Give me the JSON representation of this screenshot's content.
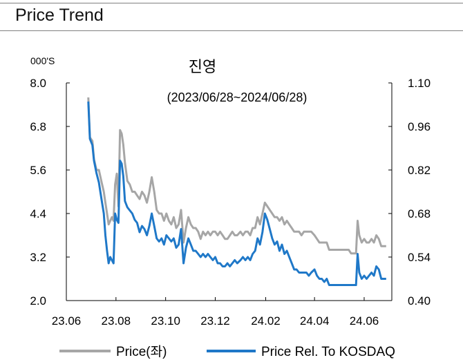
{
  "header": {
    "title": "Price Trend"
  },
  "chart_data": {
    "type": "line",
    "title": "진영",
    "subtitle": "(2023/06/28~2024/06/28)",
    "y_unit_label": "000'S",
    "x_tick_labels": [
      "23.06",
      "23.08",
      "23.10",
      "23.12",
      "24.02",
      "24.04",
      "24.06"
    ],
    "xlim": [
      "2023-06-01",
      "2024-07-05"
    ],
    "ylim_left": [
      2.0,
      8.0
    ],
    "ylim_right": [
      0.4,
      1.1
    ],
    "left_ticks": [
      "8.0",
      "6.8",
      "5.6",
      "4.4",
      "3.2",
      "2.0"
    ],
    "right_ticks": [
      "1.10",
      "0.96",
      "0.82",
      "0.68",
      "0.54",
      "0.40"
    ],
    "grid": false,
    "legend": "bottom",
    "series": [
      {
        "name": "Price(좌)",
        "axis": "left",
        "color": "#a6a6a6",
        "points": [
          [
            "2023-06-28",
            7.6
          ],
          [
            "2023-06-30",
            6.5
          ],
          [
            "2023-07-03",
            6.4
          ],
          [
            "2023-07-05",
            5.9
          ],
          [
            "2023-07-08",
            5.6
          ],
          [
            "2023-07-11",
            5.6
          ],
          [
            "2023-07-14",
            5.3
          ],
          [
            "2023-07-17",
            5.0
          ],
          [
            "2023-07-19",
            4.7
          ],
          [
            "2023-07-21",
            4.4
          ],
          [
            "2023-07-23",
            4.1
          ],
          [
            "2023-07-25",
            4.2
          ],
          [
            "2023-07-27",
            4.3
          ],
          [
            "2023-07-29",
            4.2
          ],
          [
            "2023-07-31",
            5.2
          ],
          [
            "2023-08-02",
            5.5
          ],
          [
            "2023-08-04",
            4.6
          ],
          [
            "2023-08-06",
            6.7
          ],
          [
            "2023-08-08",
            6.6
          ],
          [
            "2023-08-10",
            6.3
          ],
          [
            "2023-08-12",
            5.8
          ],
          [
            "2023-08-15",
            5.3
          ],
          [
            "2023-08-18",
            5.2
          ],
          [
            "2023-08-21",
            5.0
          ],
          [
            "2023-08-24",
            5.0
          ],
          [
            "2023-08-27",
            4.9
          ],
          [
            "2023-08-30",
            4.8
          ],
          [
            "2023-09-02",
            5.0
          ],
          [
            "2023-09-05",
            4.9
          ],
          [
            "2023-09-08",
            4.7
          ],
          [
            "2023-09-11",
            5.0
          ],
          [
            "2023-09-14",
            5.4
          ],
          [
            "2023-09-17",
            5.0
          ],
          [
            "2023-09-20",
            4.5
          ],
          [
            "2023-09-23",
            4.4
          ],
          [
            "2023-09-26",
            4.4
          ],
          [
            "2023-09-29",
            4.2
          ],
          [
            "2023-10-02",
            4.4
          ],
          [
            "2023-10-05",
            4.2
          ],
          [
            "2023-10-08",
            4.1
          ],
          [
            "2023-10-11",
            4.3
          ],
          [
            "2023-10-14",
            4.0
          ],
          [
            "2023-10-17",
            4.1
          ],
          [
            "2023-10-20",
            4.5
          ],
          [
            "2023-10-23",
            3.6
          ],
          [
            "2023-10-26",
            4.0
          ],
          [
            "2023-10-29",
            4.3
          ],
          [
            "2023-11-01",
            4.1
          ],
          [
            "2023-11-04",
            4.0
          ],
          [
            "2023-11-07",
            4.0
          ],
          [
            "2023-11-10",
            3.9
          ],
          [
            "2023-11-13",
            3.7
          ],
          [
            "2023-11-16",
            3.9
          ],
          [
            "2023-11-19",
            3.8
          ],
          [
            "2023-11-22",
            3.9
          ],
          [
            "2023-11-25",
            3.8
          ],
          [
            "2023-11-28",
            3.9
          ],
          [
            "2023-12-01",
            3.9
          ],
          [
            "2023-12-04",
            3.8
          ],
          [
            "2023-12-07",
            3.9
          ],
          [
            "2023-12-10",
            3.8
          ],
          [
            "2023-12-13",
            3.7
          ],
          [
            "2023-12-16",
            3.7
          ],
          [
            "2023-12-19",
            3.8
          ],
          [
            "2023-12-22",
            3.9
          ],
          [
            "2023-12-25",
            3.8
          ],
          [
            "2023-12-28",
            3.8
          ],
          [
            "2024-01-01",
            3.9
          ],
          [
            "2024-01-04",
            3.8
          ],
          [
            "2024-01-07",
            3.9
          ],
          [
            "2024-01-10",
            3.9
          ],
          [
            "2024-01-13",
            3.8
          ],
          [
            "2024-01-16",
            4.0
          ],
          [
            "2024-01-19",
            4.0
          ],
          [
            "2024-01-22",
            4.3
          ],
          [
            "2024-01-25",
            4.1
          ],
          [
            "2024-01-28",
            4.4
          ],
          [
            "2024-01-31",
            4.7
          ],
          [
            "2024-02-03",
            4.6
          ],
          [
            "2024-02-06",
            4.5
          ],
          [
            "2024-02-09",
            4.4
          ],
          [
            "2024-02-12",
            4.3
          ],
          [
            "2024-02-15",
            4.3
          ],
          [
            "2024-02-18",
            4.2
          ],
          [
            "2024-02-21",
            4.3
          ],
          [
            "2024-02-24",
            4.1
          ],
          [
            "2024-02-27",
            4.2
          ],
          [
            "2024-03-01",
            4.1
          ],
          [
            "2024-03-04",
            4.0
          ],
          [
            "2024-03-07",
            3.9
          ],
          [
            "2024-03-10",
            3.9
          ],
          [
            "2024-03-13",
            3.9
          ],
          [
            "2024-03-16",
            3.8
          ],
          [
            "2024-03-19",
            3.9
          ],
          [
            "2024-03-22",
            3.9
          ],
          [
            "2024-03-25",
            3.9
          ],
          [
            "2024-03-28",
            3.9
          ],
          [
            "2024-04-01",
            3.8
          ],
          [
            "2024-04-04",
            3.7
          ],
          [
            "2024-04-07",
            3.6
          ],
          [
            "2024-04-10",
            3.6
          ],
          [
            "2024-04-13",
            3.6
          ],
          [
            "2024-04-16",
            3.6
          ],
          [
            "2024-04-19",
            3.4
          ],
          [
            "2024-04-22",
            3.4
          ],
          [
            "2024-04-25",
            3.4
          ],
          [
            "2024-04-28",
            3.4
          ],
          [
            "2024-05-01",
            3.4
          ],
          [
            "2024-05-04",
            3.4
          ],
          [
            "2024-05-07",
            3.4
          ],
          [
            "2024-05-10",
            3.4
          ],
          [
            "2024-05-13",
            3.4
          ],
          [
            "2024-05-16",
            3.3
          ],
          [
            "2024-05-19",
            3.3
          ],
          [
            "2024-05-22",
            3.3
          ],
          [
            "2024-05-24",
            4.2
          ],
          [
            "2024-05-26",
            3.8
          ],
          [
            "2024-05-29",
            3.6
          ],
          [
            "2024-06-01",
            3.7
          ],
          [
            "2024-06-04",
            3.6
          ],
          [
            "2024-06-07",
            3.6
          ],
          [
            "2024-06-10",
            3.7
          ],
          [
            "2024-06-13",
            3.6
          ],
          [
            "2024-06-16",
            3.8
          ],
          [
            "2024-06-19",
            3.7
          ],
          [
            "2024-06-22",
            3.5
          ],
          [
            "2024-06-25",
            3.5
          ],
          [
            "2024-06-28",
            3.5
          ]
        ]
      },
      {
        "name": "Price Rel. To KOSDAQ",
        "axis": "right",
        "color": "#1f78c8",
        "points": [
          [
            "2023-06-28",
            1.04
          ],
          [
            "2023-06-30",
            0.92
          ],
          [
            "2023-07-03",
            0.9
          ],
          [
            "2023-07-05",
            0.85
          ],
          [
            "2023-07-08",
            0.81
          ],
          [
            "2023-07-11",
            0.78
          ],
          [
            "2023-07-14",
            0.73
          ],
          [
            "2023-07-17",
            0.68
          ],
          [
            "2023-07-19",
            0.61
          ],
          [
            "2023-07-21",
            0.56
          ],
          [
            "2023-07-23",
            0.52
          ],
          [
            "2023-07-25",
            0.54
          ],
          [
            "2023-07-27",
            0.53
          ],
          [
            "2023-07-29",
            0.52
          ],
          [
            "2023-07-31",
            0.68
          ],
          [
            "2023-08-02",
            0.66
          ],
          [
            "2023-08-04",
            0.65
          ],
          [
            "2023-08-06",
            0.85
          ],
          [
            "2023-08-08",
            0.84
          ],
          [
            "2023-08-10",
            0.8
          ],
          [
            "2023-08-12",
            0.72
          ],
          [
            "2023-08-15",
            0.7
          ],
          [
            "2023-08-18",
            0.69
          ],
          [
            "2023-08-21",
            0.68
          ],
          [
            "2023-08-24",
            0.66
          ],
          [
            "2023-08-27",
            0.65
          ],
          [
            "2023-08-30",
            0.62
          ],
          [
            "2023-09-02",
            0.64
          ],
          [
            "2023-09-05",
            0.63
          ],
          [
            "2023-09-08",
            0.61
          ],
          [
            "2023-09-11",
            0.64
          ],
          [
            "2023-09-14",
            0.68
          ],
          [
            "2023-09-17",
            0.64
          ],
          [
            "2023-09-20",
            0.6
          ],
          [
            "2023-09-23",
            0.59
          ],
          [
            "2023-09-26",
            0.6
          ],
          [
            "2023-09-29",
            0.58
          ],
          [
            "2023-10-02",
            0.61
          ],
          [
            "2023-10-05",
            0.6
          ],
          [
            "2023-10-08",
            0.59
          ],
          [
            "2023-10-11",
            0.6
          ],
          [
            "2023-10-14",
            0.57
          ],
          [
            "2023-10-17",
            0.58
          ],
          [
            "2023-10-20",
            0.63
          ],
          [
            "2023-10-23",
            0.52
          ],
          [
            "2023-10-26",
            0.57
          ],
          [
            "2023-10-29",
            0.6
          ],
          [
            "2023-11-01",
            0.58
          ],
          [
            "2023-11-04",
            0.56
          ],
          [
            "2023-11-07",
            0.56
          ],
          [
            "2023-11-10",
            0.55
          ],
          [
            "2023-11-13",
            0.54
          ],
          [
            "2023-11-16",
            0.55
          ],
          [
            "2023-11-19",
            0.54
          ],
          [
            "2023-11-22",
            0.55
          ],
          [
            "2023-11-25",
            0.54
          ],
          [
            "2023-11-28",
            0.53
          ],
          [
            "2023-12-01",
            0.54
          ],
          [
            "2023-12-04",
            0.52
          ],
          [
            "2023-12-07",
            0.52
          ],
          [
            "2023-12-10",
            0.51
          ],
          [
            "2023-12-13",
            0.51
          ],
          [
            "2023-12-16",
            0.52
          ],
          [
            "2023-12-19",
            0.51
          ],
          [
            "2023-12-22",
            0.52
          ],
          [
            "2023-12-25",
            0.53
          ],
          [
            "2023-12-28",
            0.52
          ],
          [
            "2024-01-01",
            0.53
          ],
          [
            "2024-01-04",
            0.54
          ],
          [
            "2024-01-07",
            0.53
          ],
          [
            "2024-01-10",
            0.54
          ],
          [
            "2024-01-13",
            0.53
          ],
          [
            "2024-01-16",
            0.55
          ],
          [
            "2024-01-19",
            0.56
          ],
          [
            "2024-01-22",
            0.6
          ],
          [
            "2024-01-25",
            0.58
          ],
          [
            "2024-01-28",
            0.62
          ],
          [
            "2024-01-31",
            0.68
          ],
          [
            "2024-02-03",
            0.66
          ],
          [
            "2024-02-06",
            0.63
          ],
          [
            "2024-02-09",
            0.6
          ],
          [
            "2024-02-12",
            0.58
          ],
          [
            "2024-02-15",
            0.59
          ],
          [
            "2024-02-18",
            0.56
          ],
          [
            "2024-02-21",
            0.58
          ],
          [
            "2024-02-24",
            0.55
          ],
          [
            "2024-02-27",
            0.56
          ],
          [
            "2024-03-01",
            0.54
          ],
          [
            "2024-03-04",
            0.52
          ],
          [
            "2024-03-07",
            0.5
          ],
          [
            "2024-03-10",
            0.5
          ],
          [
            "2024-03-13",
            0.49
          ],
          [
            "2024-03-16",
            0.49
          ],
          [
            "2024-03-19",
            0.49
          ],
          [
            "2024-03-22",
            0.49
          ],
          [
            "2024-03-25",
            0.48
          ],
          [
            "2024-03-28",
            0.49
          ],
          [
            "2024-04-01",
            0.5
          ],
          [
            "2024-04-04",
            0.48
          ],
          [
            "2024-04-07",
            0.47
          ],
          [
            "2024-04-10",
            0.47
          ],
          [
            "2024-04-13",
            0.46
          ],
          [
            "2024-04-16",
            0.47
          ],
          [
            "2024-04-19",
            0.45
          ],
          [
            "2024-04-22",
            0.45
          ],
          [
            "2024-04-25",
            0.45
          ],
          [
            "2024-04-28",
            0.45
          ],
          [
            "2024-05-01",
            0.45
          ],
          [
            "2024-05-04",
            0.45
          ],
          [
            "2024-05-07",
            0.45
          ],
          [
            "2024-05-10",
            0.45
          ],
          [
            "2024-05-13",
            0.45
          ],
          [
            "2024-05-16",
            0.45
          ],
          [
            "2024-05-19",
            0.45
          ],
          [
            "2024-05-22",
            0.45
          ],
          [
            "2024-05-24",
            0.55
          ],
          [
            "2024-05-26",
            0.49
          ],
          [
            "2024-05-29",
            0.47
          ],
          [
            "2024-06-01",
            0.48
          ],
          [
            "2024-06-04",
            0.47
          ],
          [
            "2024-06-07",
            0.48
          ],
          [
            "2024-06-10",
            0.49
          ],
          [
            "2024-06-13",
            0.48
          ],
          [
            "2024-06-16",
            0.51
          ],
          [
            "2024-06-19",
            0.5
          ],
          [
            "2024-06-22",
            0.47
          ],
          [
            "2024-06-25",
            0.47
          ],
          [
            "2024-06-28",
            0.47
          ]
        ]
      }
    ]
  }
}
